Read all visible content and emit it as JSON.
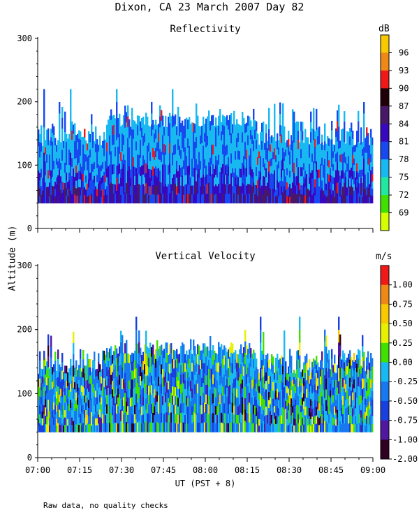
{
  "title": "Dixon, CA 23 March 2007  Day  82",
  "ylabel": "Altitude  (m)",
  "xlabel": "UT   (PST + 8)",
  "footnote": "Raw data, no quality checks",
  "chart_data": [
    {
      "type": "heatmap",
      "title": "Reflectivity",
      "unit": "dB",
      "ylabel": "Altitude  (m)",
      "ylim": [
        0,
        300
      ],
      "yticks": [
        "0",
        "100",
        "200",
        "300"
      ],
      "xticks": [
        "07:00",
        "07:15",
        "07:30",
        "07:45",
        "08:00",
        "08:15",
        "08:30",
        "08:45",
        "09:00"
      ],
      "x_range": [
        "07:00",
        "09:00"
      ],
      "colorbar_labels": [
        "69",
        "72",
        "75",
        "78",
        "81",
        "84",
        "87",
        "90",
        "93",
        "96"
      ],
      "colorbar_colors": [
        "#d4ff00",
        "#40e000",
        "#20e8a0",
        "#18b8f0",
        "#1848f0",
        "#3808c0",
        "#481868",
        "#200008",
        "#f01818",
        "#f08818",
        "#f8c800"
      ],
      "data_extent_m": [
        40,
        220
      ],
      "typical_top_m": 140,
      "profile": [
        {
          "altitude_m": 60,
          "dB": 87
        },
        {
          "altitude_m": 80,
          "dB": 81
        },
        {
          "altitude_m": 110,
          "dB": 76
        },
        {
          "altitude_m": 140,
          "dB": 79
        },
        {
          "altitude_m": 170,
          "dB": 82
        }
      ]
    },
    {
      "type": "heatmap",
      "title": "Vertical Velocity",
      "unit": "m/s",
      "ylim": [
        0,
        300
      ],
      "yticks": [
        "0",
        "100",
        "200",
        "300"
      ],
      "xticks": [
        "07:00",
        "07:15",
        "07:30",
        "07:45",
        "08:00",
        "08:15",
        "08:30",
        "08:45",
        "09:00"
      ],
      "x_range": [
        "07:00",
        "09:00"
      ],
      "colorbar_labels": [
        "1.00",
        "0.75",
        "0.50",
        "0.25",
        "0.00",
        "-0.25",
        "-0.50",
        "-0.75",
        "-1.00",
        "-2.00"
      ],
      "colorbar_colors": [
        "#f01818",
        "#f08818",
        "#f8c800",
        "#e8f000",
        "#40e000",
        "#18b8f0",
        "#1878f0",
        "#1840e0",
        "#5018a0",
        "#300020"
      ],
      "data_extent_m": [
        40,
        220
      ],
      "typical_top_m": 140,
      "profile": [
        {
          "altitude_m": 60,
          "m_per_s": -0.4
        },
        {
          "altitude_m": 100,
          "m_per_s": -0.1
        },
        {
          "altitude_m": 140,
          "m_per_s": 0.1
        }
      ]
    }
  ]
}
